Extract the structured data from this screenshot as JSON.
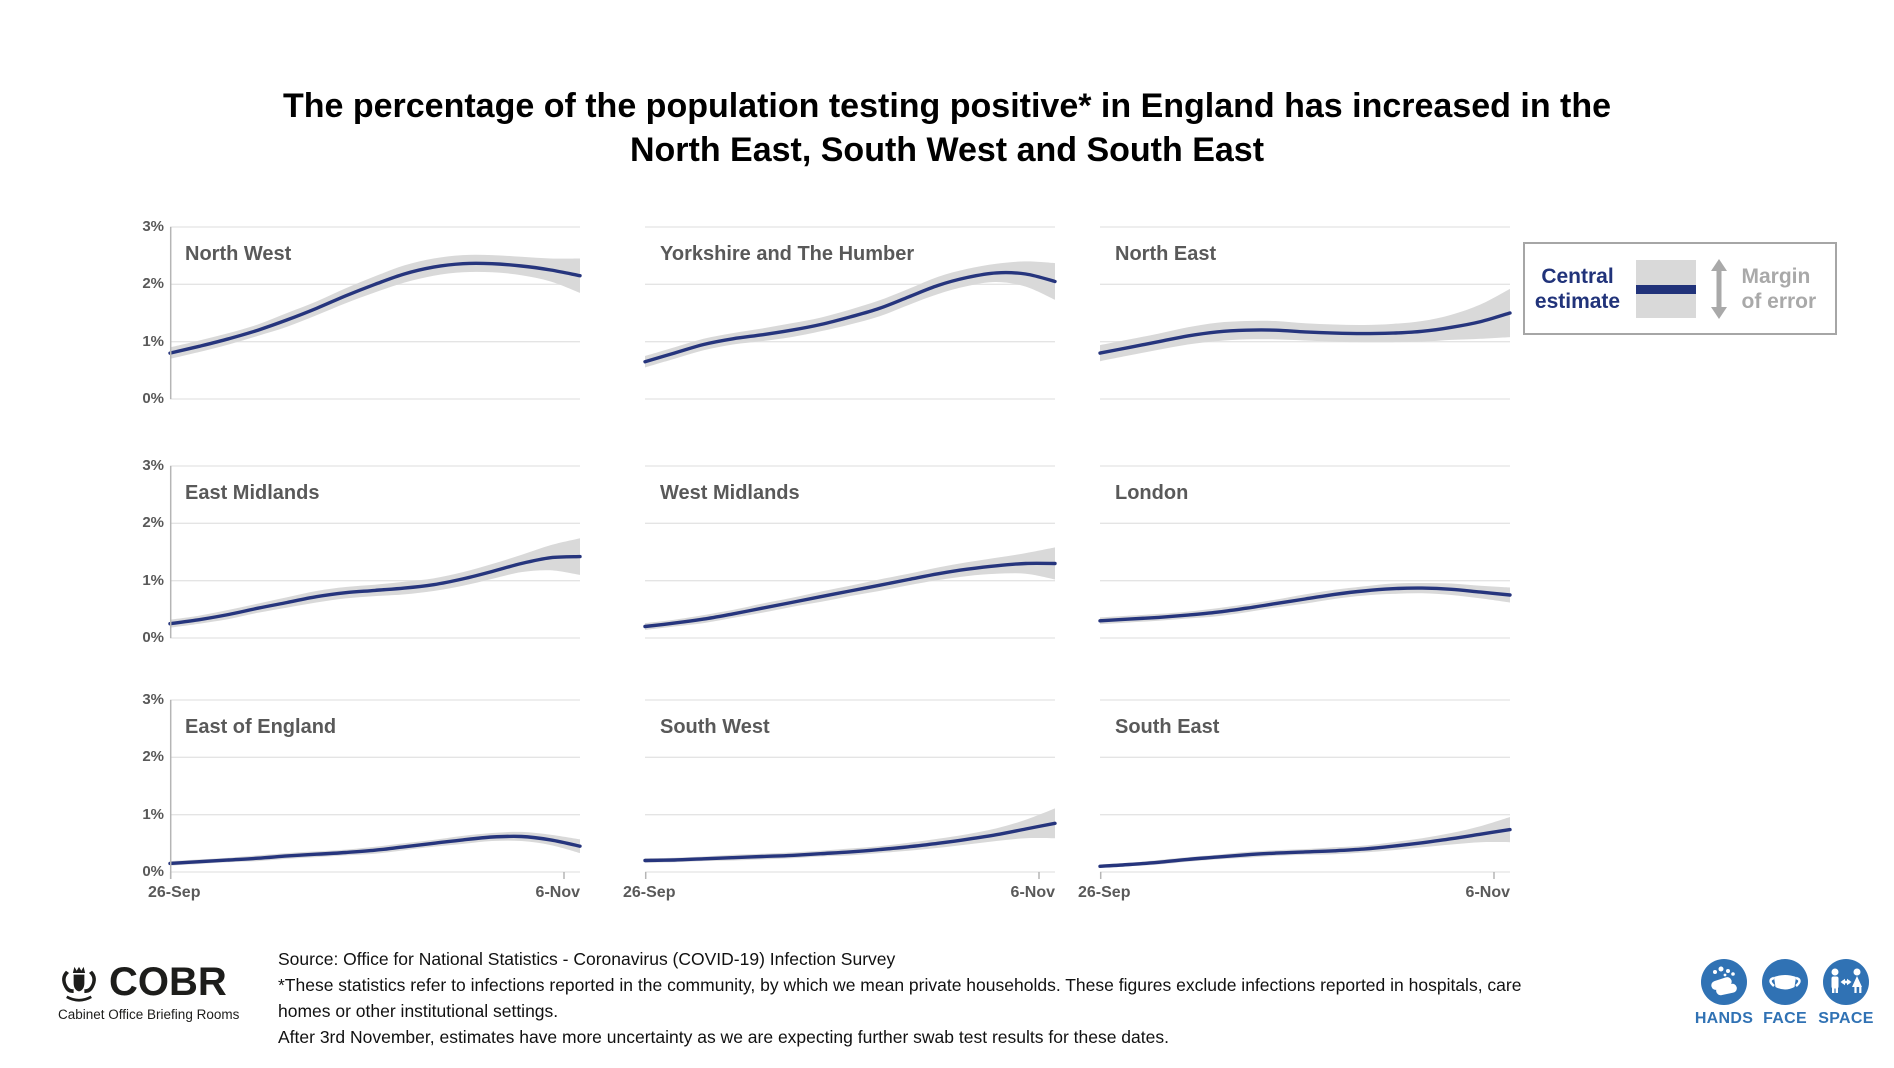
{
  "title": {
    "line1": "The percentage of the population testing positive* in England has increased in the",
    "line2": "North East, South West and South East"
  },
  "legend": {
    "central_label": "Central estimate",
    "margin_label": "Margin of error"
  },
  "axis": {
    "y_ticks": [
      "3%",
      "2%",
      "1%",
      "0%"
    ],
    "x_start": "26-Sep",
    "x_end": "6-Nov"
  },
  "chart_data": [
    {
      "type": "line",
      "region": "North West",
      "unit": "%",
      "ylim": [
        0,
        3
      ],
      "x_range": [
        "26-Sep",
        "6-Nov"
      ],
      "central": [
        0.8,
        0.92,
        1.05,
        1.2,
        1.38,
        1.58,
        1.8,
        2.0,
        2.18,
        2.3,
        2.36,
        2.36,
        2.32,
        2.25,
        2.15
      ],
      "margin_of_error": [
        0.1,
        0.1,
        0.1,
        0.1,
        0.12,
        0.12,
        0.13,
        0.14,
        0.15,
        0.15,
        0.15,
        0.15,
        0.16,
        0.2,
        0.3
      ]
    },
    {
      "type": "line",
      "region": "Yorkshire and The Humber",
      "unit": "%",
      "ylim": [
        0,
        3
      ],
      "x_range": [
        "26-Sep",
        "6-Nov"
      ],
      "central": [
        0.65,
        0.8,
        0.95,
        1.05,
        1.12,
        1.2,
        1.3,
        1.43,
        1.58,
        1.78,
        1.98,
        2.12,
        2.2,
        2.18,
        2.05
      ],
      "margin_of_error": [
        0.1,
        0.1,
        0.1,
        0.1,
        0.11,
        0.12,
        0.12,
        0.13,
        0.14,
        0.14,
        0.15,
        0.15,
        0.16,
        0.22,
        0.32
      ]
    },
    {
      "type": "line",
      "region": "North East",
      "unit": "%",
      "ylim": [
        0,
        3
      ],
      "x_range": [
        "26-Sep",
        "6-Nov"
      ],
      "central": [
        0.8,
        0.9,
        1.0,
        1.1,
        1.17,
        1.2,
        1.2,
        1.17,
        1.15,
        1.14,
        1.15,
        1.18,
        1.25,
        1.35,
        1.5
      ],
      "margin_of_error": [
        0.14,
        0.14,
        0.14,
        0.15,
        0.16,
        0.16,
        0.16,
        0.15,
        0.15,
        0.15,
        0.16,
        0.18,
        0.22,
        0.3,
        0.42
      ]
    },
    {
      "type": "line",
      "region": "East Midlands",
      "unit": "%",
      "ylim": [
        0,
        3
      ],
      "x_range": [
        "26-Sep",
        "6-Nov"
      ],
      "central": [
        0.25,
        0.32,
        0.41,
        0.52,
        0.62,
        0.72,
        0.79,
        0.83,
        0.87,
        0.93,
        1.03,
        1.16,
        1.3,
        1.4,
        1.42
      ],
      "margin_of_error": [
        0.07,
        0.07,
        0.08,
        0.08,
        0.09,
        0.1,
        0.1,
        0.1,
        0.11,
        0.11,
        0.12,
        0.13,
        0.15,
        0.22,
        0.32
      ]
    },
    {
      "type": "line",
      "region": "West Midlands",
      "unit": "%",
      "ylim": [
        0,
        3
      ],
      "x_range": [
        "26-Sep",
        "6-Nov"
      ],
      "central": [
        0.2,
        0.26,
        0.33,
        0.42,
        0.52,
        0.62,
        0.72,
        0.82,
        0.92,
        1.02,
        1.12,
        1.2,
        1.26,
        1.3,
        1.3
      ],
      "margin_of_error": [
        0.06,
        0.06,
        0.07,
        0.07,
        0.08,
        0.08,
        0.09,
        0.09,
        0.1,
        0.1,
        0.11,
        0.12,
        0.14,
        0.18,
        0.28
      ]
    },
    {
      "type": "line",
      "region": "London",
      "unit": "%",
      "ylim": [
        0,
        3
      ],
      "x_range": [
        "26-Sep",
        "6-Nov"
      ],
      "central": [
        0.3,
        0.33,
        0.36,
        0.4,
        0.45,
        0.52,
        0.6,
        0.68,
        0.76,
        0.82,
        0.86,
        0.87,
        0.85,
        0.8,
        0.75
      ],
      "margin_of_error": [
        0.06,
        0.06,
        0.06,
        0.06,
        0.07,
        0.07,
        0.07,
        0.08,
        0.08,
        0.08,
        0.09,
        0.09,
        0.1,
        0.11,
        0.13
      ]
    },
    {
      "type": "line",
      "region": "East of England",
      "unit": "%",
      "ylim": [
        0,
        3
      ],
      "x_range": [
        "26-Sep",
        "6-Nov"
      ],
      "central": [
        0.15,
        0.18,
        0.21,
        0.24,
        0.28,
        0.31,
        0.34,
        0.38,
        0.44,
        0.5,
        0.56,
        0.61,
        0.62,
        0.56,
        0.45
      ],
      "margin_of_error": [
        0.04,
        0.04,
        0.04,
        0.05,
        0.05,
        0.05,
        0.05,
        0.06,
        0.06,
        0.06,
        0.07,
        0.07,
        0.08,
        0.09,
        0.12
      ]
    },
    {
      "type": "line",
      "region": "South West",
      "unit": "%",
      "ylim": [
        0,
        3
      ],
      "x_range": [
        "26-Sep",
        "6-Nov"
      ],
      "central": [
        0.2,
        0.21,
        0.23,
        0.25,
        0.27,
        0.29,
        0.32,
        0.35,
        0.39,
        0.44,
        0.5,
        0.57,
        0.65,
        0.75,
        0.85
      ],
      "margin_of_error": [
        0.04,
        0.04,
        0.04,
        0.05,
        0.05,
        0.05,
        0.05,
        0.06,
        0.06,
        0.07,
        0.08,
        0.09,
        0.11,
        0.16,
        0.26
      ]
    },
    {
      "type": "line",
      "region": "South East",
      "unit": "%",
      "ylim": [
        0,
        3
      ],
      "x_range": [
        "26-Sep",
        "6-Nov"
      ],
      "central": [
        0.1,
        0.13,
        0.17,
        0.22,
        0.26,
        0.3,
        0.33,
        0.35,
        0.37,
        0.4,
        0.45,
        0.51,
        0.58,
        0.66,
        0.74
      ],
      "margin_of_error": [
        0.03,
        0.03,
        0.04,
        0.04,
        0.04,
        0.05,
        0.05,
        0.05,
        0.06,
        0.06,
        0.07,
        0.08,
        0.1,
        0.14,
        0.22
      ]
    }
  ],
  "footer": {
    "lines": [
      "Source: Office for National Statistics - Coronavirus (COVID-19) Infection Survey",
      "*These statistics refer to infections reported in the community, by which we mean private households. These figures exclude infections reported in hospitals, care",
      "homes or other institutional settings.",
      "After 3rd November, estimates have more uncertainty as we are expecting further swab test results for these dates."
    ],
    "cobr_wordmark": "COBR",
    "cobr_subtitle": "Cabinet Office Briefing Rooms",
    "campaign_labels": [
      "HANDS",
      "FACE",
      "SPACE"
    ]
  },
  "colors": {
    "navy": "#26357d",
    "band": "#d9d9d9",
    "grid": "#e4e4e4",
    "axis": "#b5b5b5",
    "gray_text": "#595959",
    "light_gray_text": "#a9a9a9",
    "brand_blue": "#3072b4",
    "title_black": "#000000"
  }
}
